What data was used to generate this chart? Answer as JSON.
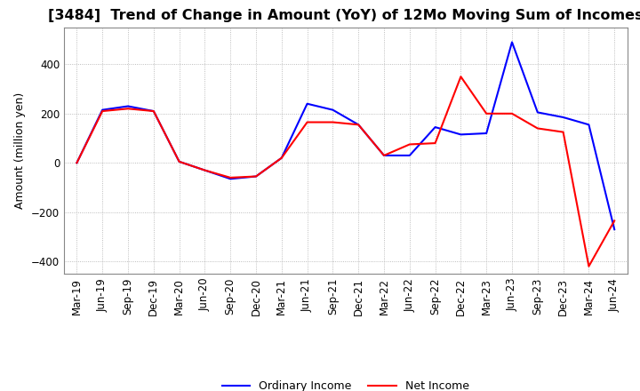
{
  "title": "[3484]  Trend of Change in Amount (YoY) of 12Mo Moving Sum of Incomes",
  "ylabel": "Amount (million yen)",
  "x_labels": [
    "Mar-19",
    "Jun-19",
    "Sep-19",
    "Dec-19",
    "Mar-20",
    "Jun-20",
    "Sep-20",
    "Dec-20",
    "Mar-21",
    "Jun-21",
    "Sep-21",
    "Dec-21",
    "Mar-22",
    "Jun-22",
    "Sep-22",
    "Dec-22",
    "Mar-23",
    "Jun-23",
    "Sep-23",
    "Dec-23",
    "Mar-24",
    "Jun-24"
  ],
  "ordinary_income": [
    0,
    215,
    230,
    210,
    5,
    -30,
    -65,
    -55,
    20,
    240,
    215,
    155,
    30,
    30,
    145,
    115,
    120,
    490,
    205,
    185,
    155,
    -270
  ],
  "net_income": [
    0,
    210,
    220,
    210,
    5,
    -30,
    -60,
    -55,
    20,
    165,
    165,
    155,
    30,
    75,
    80,
    350,
    200,
    200,
    140,
    125,
    -420,
    -235
  ],
  "ordinary_income_color": "#0000ff",
  "net_income_color": "#ff0000",
  "ylim": [
    -450,
    550
  ],
  "yticks": [
    -400,
    -200,
    0,
    200,
    400
  ],
  "background_color": "#ffffff",
  "grid_color": "#aaaaaa",
  "line_width": 1.5,
  "title_fontsize": 11.5,
  "label_fontsize": 9,
  "tick_fontsize": 8.5
}
